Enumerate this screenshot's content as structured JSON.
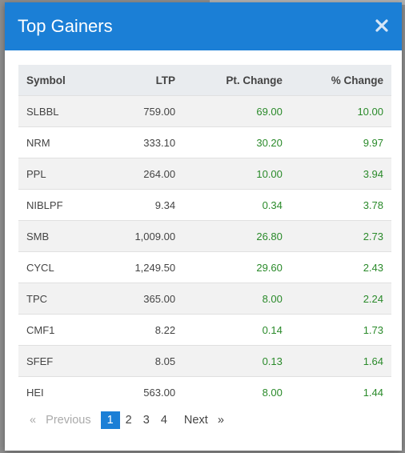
{
  "modal": {
    "title": "Top Gainers",
    "close_icon": "close-icon"
  },
  "table": {
    "headers": [
      "Symbol",
      "LTP",
      "Pt. Change",
      "% Change"
    ],
    "rows": [
      {
        "symbol": "SLBBL",
        "ltp": "759.00",
        "pt_change": "69.00",
        "pct_change": "10.00"
      },
      {
        "symbol": "NRM",
        "ltp": "333.10",
        "pt_change": "30.20",
        "pct_change": "9.97"
      },
      {
        "symbol": "PPL",
        "ltp": "264.00",
        "pt_change": "10.00",
        "pct_change": "3.94"
      },
      {
        "symbol": "NIBLPF",
        "ltp": "9.34",
        "pt_change": "0.34",
        "pct_change": "3.78"
      },
      {
        "symbol": "SMB",
        "ltp": "1,009.00",
        "pt_change": "26.80",
        "pct_change": "2.73"
      },
      {
        "symbol": "CYCL",
        "ltp": "1,249.50",
        "pt_change": "29.60",
        "pct_change": "2.43"
      },
      {
        "symbol": "TPC",
        "ltp": "365.00",
        "pt_change": "8.00",
        "pct_change": "2.24"
      },
      {
        "symbol": "CMF1",
        "ltp": "8.22",
        "pt_change": "0.14",
        "pct_change": "1.73"
      },
      {
        "symbol": "SFEF",
        "ltp": "8.05",
        "pt_change": "0.13",
        "pct_change": "1.64"
      },
      {
        "symbol": "HEI",
        "ltp": "563.00",
        "pt_change": "8.00",
        "pct_change": "1.44"
      }
    ]
  },
  "pagination": {
    "prev_arrow": "«",
    "prev_label": "Previous",
    "pages": [
      "1",
      "2",
      "3",
      "4"
    ],
    "active_page": "1",
    "next_label": "Next",
    "next_arrow": "»"
  },
  "colors": {
    "header_bg": "#1b7fd6",
    "gain_text": "#2a8a2a",
    "active_page_bg": "#1b7fd6"
  }
}
